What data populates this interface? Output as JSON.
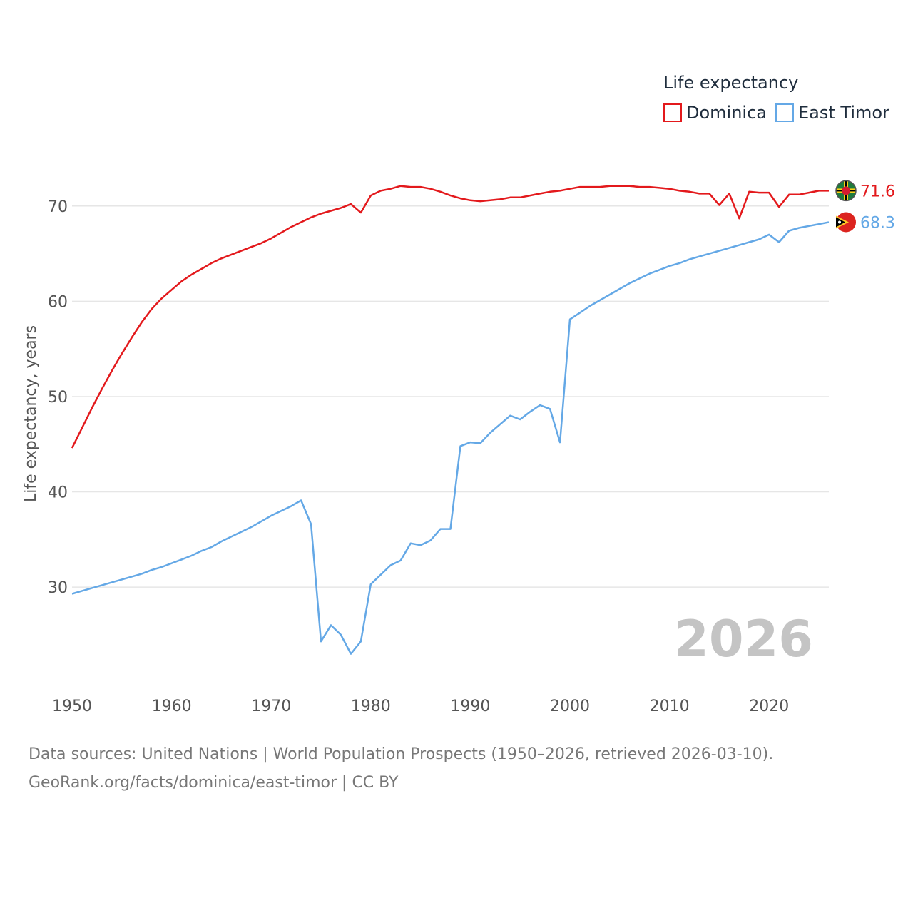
{
  "chart_data": {
    "type": "line",
    "legend_title": "Life expectancy",
    "legend_position": "top-right",
    "ylabel": "Life expectancy, years",
    "xlabel": "",
    "xlim": [
      1950,
      2026
    ],
    "ylim": [
      20.5,
      75
    ],
    "x_ticks": [
      1950,
      1960,
      1970,
      1980,
      1990,
      2000,
      2010,
      2020
    ],
    "y_ticks": [
      30,
      40,
      50,
      60,
      70
    ],
    "grid": true,
    "year_display": "2026",
    "x": [
      1950,
      1951,
      1952,
      1953,
      1954,
      1955,
      1956,
      1957,
      1958,
      1959,
      1960,
      1961,
      1962,
      1963,
      1964,
      1965,
      1966,
      1967,
      1968,
      1969,
      1970,
      1971,
      1972,
      1973,
      1974,
      1975,
      1976,
      1977,
      1978,
      1979,
      1980,
      1981,
      1982,
      1983,
      1984,
      1985,
      1986,
      1987,
      1988,
      1989,
      1990,
      1991,
      1992,
      1993,
      1994,
      1995,
      1996,
      1997,
      1998,
      1999,
      2000,
      2001,
      2002,
      2003,
      2004,
      2005,
      2006,
      2007,
      2008,
      2009,
      2010,
      2011,
      2012,
      2013,
      2014,
      2015,
      2016,
      2017,
      2018,
      2019,
      2020,
      2021,
      2022,
      2023,
      2024,
      2025,
      2026
    ],
    "series": [
      {
        "name": "Dominica",
        "color": "#e3191c",
        "end_label": "71.6",
        "flag_icon": "dominica-flag-icon",
        "values": [
          44.6,
          46.7,
          48.8,
          50.8,
          52.7,
          54.5,
          56.2,
          57.8,
          59.2,
          60.3,
          61.2,
          62.1,
          62.8,
          63.4,
          64.0,
          64.5,
          64.9,
          65.3,
          65.7,
          66.1,
          66.6,
          67.2,
          67.8,
          68.3,
          68.8,
          69.2,
          69.5,
          69.8,
          70.2,
          69.3,
          71.1,
          71.6,
          71.8,
          72.1,
          72.0,
          72.0,
          71.8,
          71.5,
          71.1,
          70.8,
          70.6,
          70.5,
          70.6,
          70.7,
          70.9,
          70.9,
          71.1,
          71.3,
          71.5,
          71.6,
          71.8,
          72.0,
          72.0,
          72.0,
          72.1,
          72.1,
          72.1,
          72.0,
          72.0,
          71.9,
          71.8,
          71.6,
          71.5,
          71.3,
          71.3,
          70.1,
          71.3,
          68.7,
          71.5,
          71.4,
          71.4,
          69.9,
          71.2,
          71.2,
          71.4,
          71.6,
          71.6
        ]
      },
      {
        "name": "East Timor",
        "color": "#64a8e6",
        "end_label": "68.3",
        "flag_icon": "east-timor-flag-icon",
        "values": [
          29.3,
          29.6,
          29.9,
          30.2,
          30.5,
          30.8,
          31.1,
          31.4,
          31.8,
          32.1,
          32.5,
          32.9,
          33.3,
          33.8,
          34.2,
          34.8,
          35.3,
          35.8,
          36.3,
          36.9,
          37.5,
          38.0,
          38.5,
          39.1,
          36.6,
          24.3,
          26.0,
          25.0,
          23.0,
          24.3,
          30.3,
          31.3,
          32.3,
          32.8,
          34.6,
          34.4,
          34.9,
          36.1,
          36.1,
          44.8,
          45.2,
          45.1,
          46.2,
          47.1,
          48.0,
          47.6,
          48.4,
          49.1,
          48.7,
          45.2,
          58.1,
          58.8,
          59.5,
          60.1,
          60.7,
          61.3,
          61.9,
          62.4,
          62.9,
          63.3,
          63.7,
          64.0,
          64.4,
          64.7,
          65.0,
          65.3,
          65.6,
          65.9,
          66.2,
          66.5,
          67.0,
          66.2,
          67.4,
          67.7,
          67.9,
          68.1,
          68.3
        ]
      }
    ]
  },
  "footer": {
    "line1": "Data sources: United Nations | World Population Prospects (1950–2026, retrieved 2026-03-10).",
    "line2": "GeoRank.org/facts/dominica/east-timor | CC BY"
  }
}
